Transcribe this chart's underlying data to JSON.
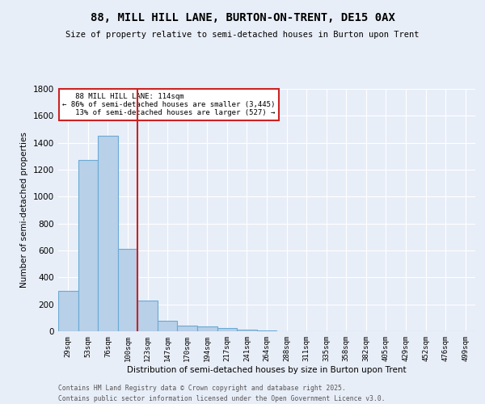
{
  "title": "88, MILL HILL LANE, BURTON-ON-TRENT, DE15 0AX",
  "subtitle": "Size of property relative to semi-detached houses in Burton upon Trent",
  "xlabel": "Distribution of semi-detached houses by size in Burton upon Trent",
  "ylabel": "Number of semi-detached properties",
  "footnote1": "Contains HM Land Registry data © Crown copyright and database right 2025.",
  "footnote2": "Contains public sector information licensed under the Open Government Licence v3.0.",
  "categories": [
    "29sqm",
    "53sqm",
    "76sqm",
    "100sqm",
    "123sqm",
    "147sqm",
    "170sqm",
    "194sqm",
    "217sqm",
    "241sqm",
    "264sqm",
    "288sqm",
    "311sqm",
    "335sqm",
    "358sqm",
    "382sqm",
    "405sqm",
    "429sqm",
    "452sqm",
    "476sqm",
    "499sqm"
  ],
  "values": [
    300,
    1270,
    1450,
    610,
    230,
    80,
    40,
    35,
    25,
    15,
    8,
    3,
    0,
    0,
    0,
    0,
    0,
    0,
    0,
    0,
    0
  ],
  "bar_color": "#b8d0e8",
  "bar_edge_color": "#6aaad4",
  "background_color": "#e8eef8",
  "grid_color": "#ffffff",
  "vline_x": 3.5,
  "vline_color": "#cc2222",
  "annotation_line1": "   88 MILL HILL LANE: 114sqm",
  "annotation_line2": "← 86% of semi-detached houses are smaller (3,445)",
  "annotation_line3": "   13% of semi-detached houses are larger (527) →",
  "annotation_box_color": "#ffffff",
  "annotation_box_edge": "#cc2222",
  "ylim": [
    0,
    1800
  ],
  "yticks": [
    0,
    200,
    400,
    600,
    800,
    1000,
    1200,
    1400,
    1600,
    1800
  ]
}
